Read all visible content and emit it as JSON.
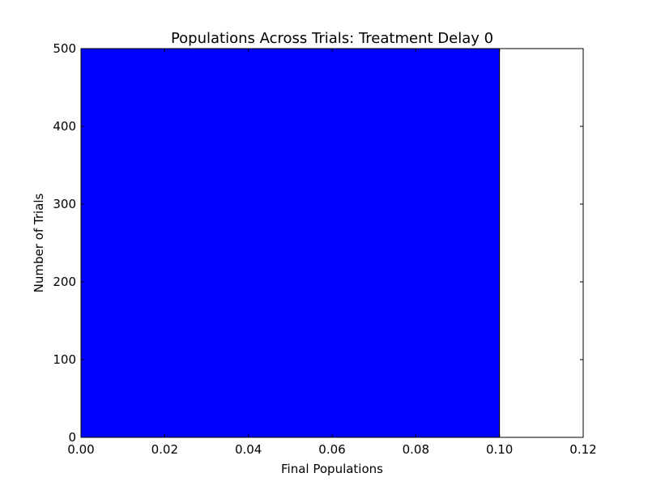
{
  "chart_data": {
    "type": "bar",
    "title": "Populations Across Trials: Treatment Delay 0",
    "xlabel": "Final Populations",
    "ylabel": "Number of Trials",
    "xlim": [
      0.0,
      0.12
    ],
    "ylim": [
      0,
      500
    ],
    "x_ticks": [
      "0.00",
      "0.02",
      "0.04",
      "0.06",
      "0.08",
      "0.10",
      "0.12"
    ],
    "y_ticks": [
      "0",
      "100",
      "200",
      "300",
      "400",
      "500"
    ],
    "bins": [
      {
        "x_start": 0.0,
        "x_end": 0.1,
        "count": 500
      }
    ],
    "bar_color": "#0000ff",
    "grid": false,
    "legend": "none"
  }
}
